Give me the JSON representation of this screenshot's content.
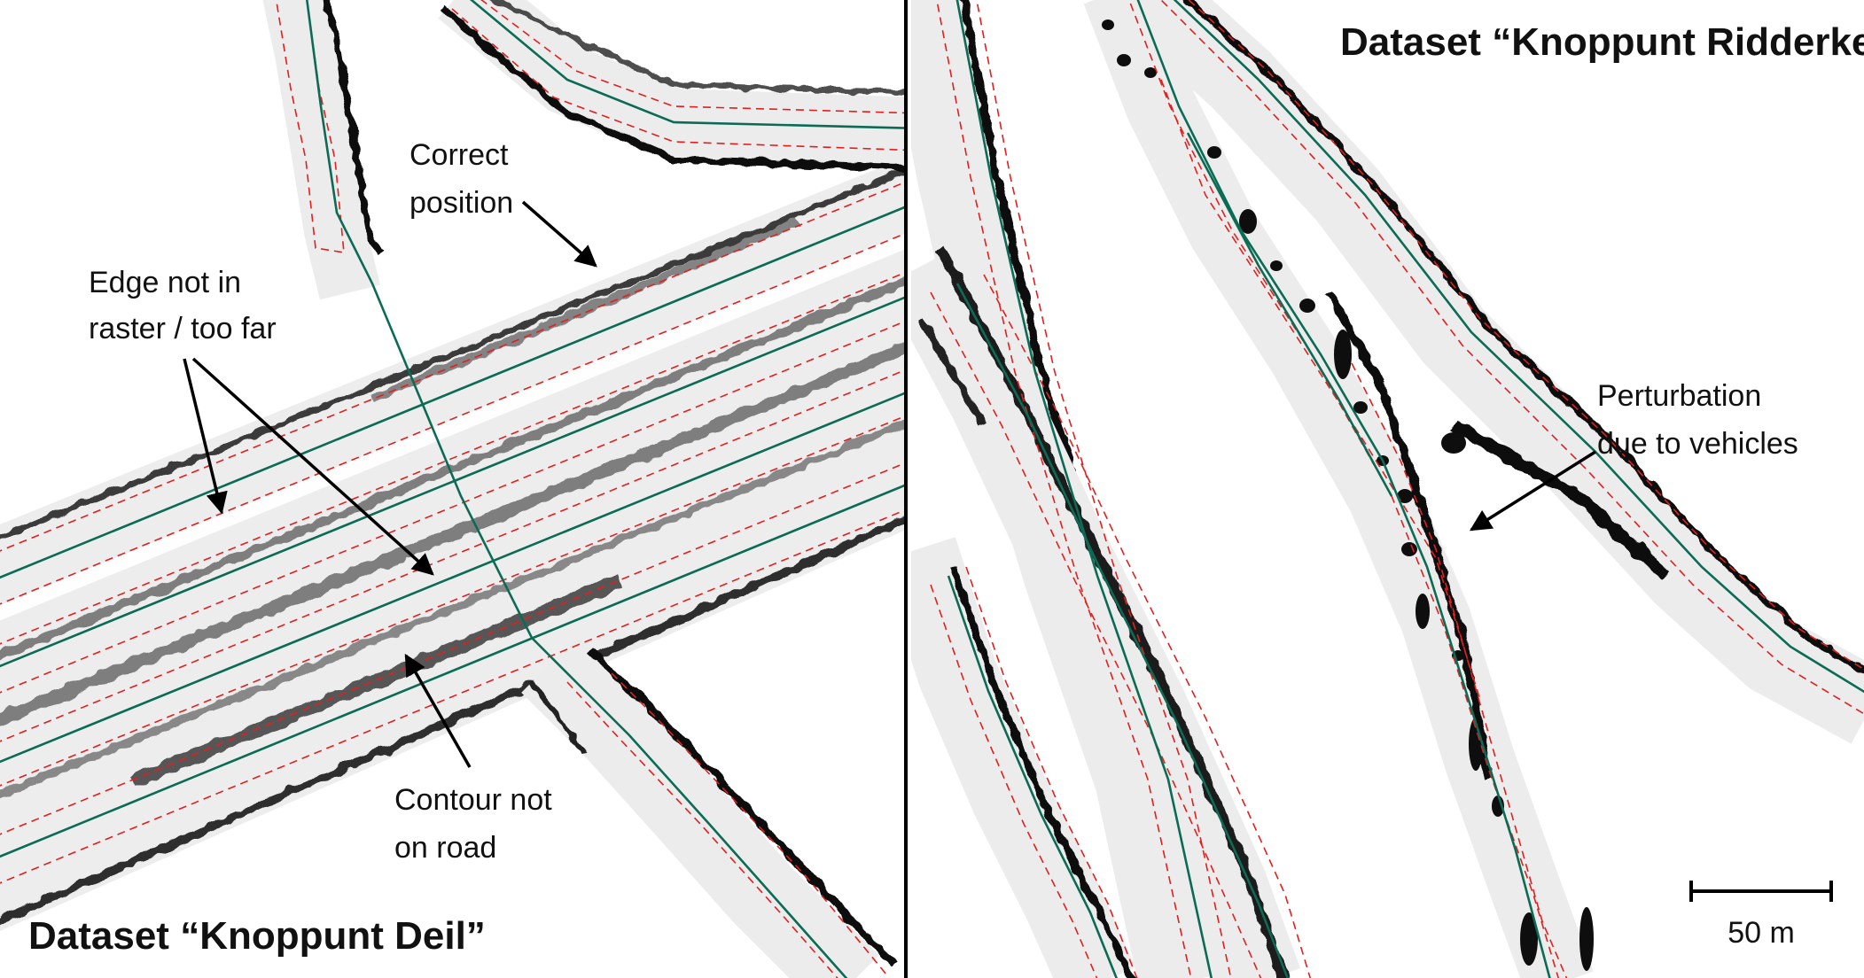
{
  "left_panel": {
    "title": "Dataset “Knoppunt Deil”",
    "annotations": {
      "correct_position": [
        "Correct",
        "position"
      ],
      "edge_not_in_raster": [
        "Edge not in",
        "raster / too far"
      ],
      "contour_not_on_road": [
        "Contour not",
        "on road"
      ]
    }
  },
  "right_panel": {
    "title": "Dataset “Knoppunt Ridderkerk”",
    "annotations": {
      "perturbation": [
        "Perturbation",
        "due to vehicles"
      ]
    },
    "scale_bar": {
      "label": "50 m"
    }
  },
  "colors": {
    "road_fill": "#ececec",
    "road_noise": "#222222",
    "centerline": "#0c6b55",
    "contour": "#e02020",
    "divider": "#000000",
    "annotation_arrow": "#000000"
  }
}
